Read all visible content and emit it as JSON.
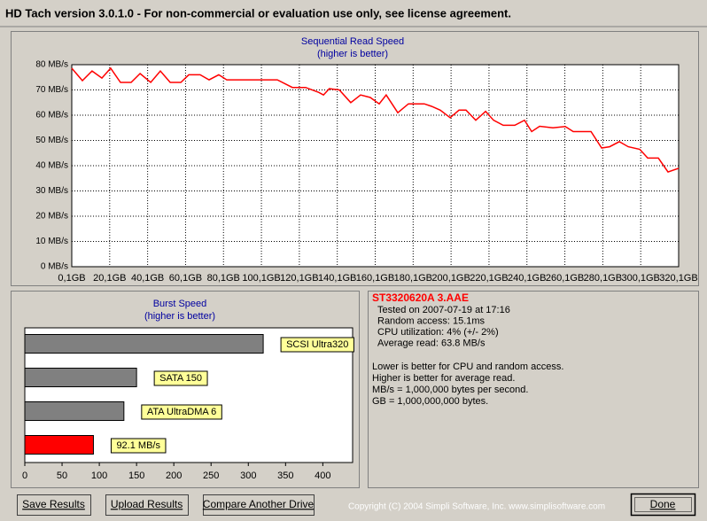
{
  "window_title": "HD Tach version 3.0.1.0  - For non-commercial or evaluation use only, see license agreement.",
  "chart_data": [
    {
      "type": "line",
      "title": "Sequential Read Speed",
      "subtitle": "(higher is better)",
      "x": [
        0.1,
        5.7,
        10.8,
        16,
        20.6,
        25.8,
        31.4,
        36.1,
        41.7,
        46.8,
        52,
        57.6,
        61.8,
        67.8,
        72.5,
        77.6,
        81.8,
        108.5,
        116.4,
        123.4,
        130.4,
        132.8,
        135.9,
        141.2,
        147.2,
        152.4,
        157.5,
        162.2,
        165.9,
        172,
        177.6,
        186,
        189.8,
        194.4,
        199.6,
        204.3,
        208,
        213.1,
        218.3,
        222.5,
        227.6,
        233.7,
        238.8,
        242.6,
        246.8,
        253.8,
        260.3,
        264.5,
        273.9,
        279.5,
        283.7,
        288.8,
        293.5,
        299.6,
        303.8,
        309.4,
        314.5,
        320.1
      ],
      "values": [
        78.6,
        73.7,
        77.5,
        74.7,
        78.6,
        73,
        73,
        76.5,
        73,
        77.5,
        73,
        73,
        76,
        76,
        74,
        76,
        74,
        74,
        71,
        71,
        69,
        68,
        70.5,
        70,
        65,
        68,
        67,
        64.5,
        68,
        61,
        64.5,
        64.5,
        63.5,
        62,
        59,
        62,
        62,
        58,
        61.5,
        58,
        56,
        56,
        58,
        53.5,
        55.6,
        55,
        55.5,
        53.5,
        53.5,
        47,
        47.5,
        49.5,
        47.5,
        46.5,
        43,
        43,
        37.5,
        39
      ],
      "color": "#ff0000",
      "xlim": [
        0.1,
        320.1
      ],
      "xticks": [
        {
          "value": 0.1,
          "label": "0,1GB"
        },
        {
          "value": 20.1,
          "label": "20,1GB"
        },
        {
          "value": 40.1,
          "label": "40,1GB"
        },
        {
          "value": 60.1,
          "label": "60,1GB"
        },
        {
          "value": 80.1,
          "label": "80,1GB"
        },
        {
          "value": 100.1,
          "label": "100,1GB"
        },
        {
          "value": 120.1,
          "label": "120,1GB"
        },
        {
          "value": 140.1,
          "label": "140,1GB"
        },
        {
          "value": 160.1,
          "label": "160,1GB"
        },
        {
          "value": 180.1,
          "label": "180,1GB"
        },
        {
          "value": 200.1,
          "label": "200,1GB"
        },
        {
          "value": 220.1,
          "label": "220,1GB"
        },
        {
          "value": 240.1,
          "label": "240,1GB"
        },
        {
          "value": 260.1,
          "label": "260,1GB"
        },
        {
          "value": 280.1,
          "label": "280,1GB"
        },
        {
          "value": 300.1,
          "label": "300,1GB"
        },
        {
          "value": 320.1,
          "label": "320,1GB"
        }
      ],
      "ylim": [
        0,
        80
      ],
      "yticks": [
        {
          "value": 0,
          "label": "0 MB/s"
        },
        {
          "value": 10,
          "label": "10 MB/s"
        },
        {
          "value": 20,
          "label": "20 MB/s"
        },
        {
          "value": 30,
          "label": "30 MB/s"
        },
        {
          "value": 40,
          "label": "40 MB/s"
        },
        {
          "value": 50,
          "label": "50 MB/s"
        },
        {
          "value": 60,
          "label": "60 MB/s"
        },
        {
          "value": 70,
          "label": "70 MB/s"
        },
        {
          "value": 80,
          "label": "80 MB/s"
        }
      ],
      "grid": true
    },
    {
      "type": "bar",
      "title": "Burst Speed",
      "subtitle": "(higher is better)",
      "categories": [
        "SCSI Ultra320",
        "SATA 150",
        "ATA UltraDMA 6",
        "92.1 MB/s"
      ],
      "values": [
        320,
        150,
        133,
        92.1
      ],
      "colors": [
        "#808080",
        "#808080",
        "#808080",
        "#ff0000"
      ],
      "xlim": [
        0,
        440
      ],
      "xticks": [
        0,
        50,
        100,
        150,
        200,
        250,
        300,
        350,
        400
      ],
      "grid": false
    }
  ],
  "drive": {
    "name": "ST3320620A 3.AAE",
    "details": [
      "Tested on 2007-07-19 at 17:16",
      "Random access: 15.1ms",
      "CPU utilization: 4% (+/- 2%)",
      "Average read: 63.8 MB/s"
    ]
  },
  "notes": [
    "Lower is better for CPU and random access.",
    "Higher is better for average read.",
    "MB/s = 1,000,000 bytes per second.",
    "GB = 1,000,000,000 bytes."
  ],
  "buttons": [
    "Save Results",
    "Upload Results",
    "Compare Another Drive"
  ],
  "copyright": "Copyright (C) 2004 Simpli Software, Inc. www.simplisoftware.com",
  "done_button": "Done"
}
